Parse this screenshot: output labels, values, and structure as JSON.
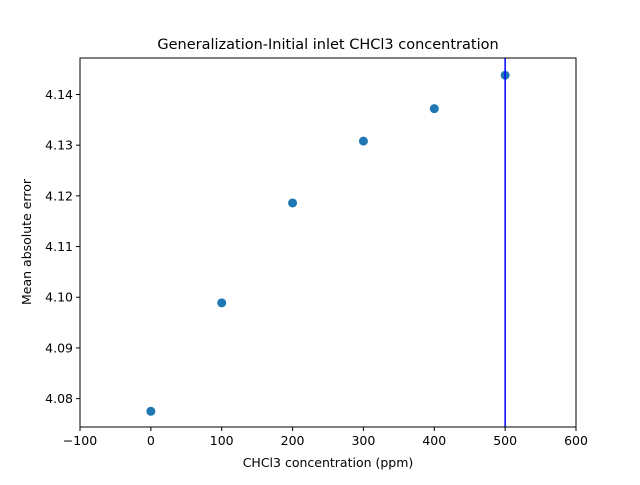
{
  "chart_data": {
    "type": "scatter",
    "title": "Generalization-Initial inlet CHCl3 concentration",
    "xlabel": "CHCl3 concentration (ppm)",
    "ylabel": "Mean absolute error",
    "xlim": [
      -100,
      600
    ],
    "ylim": [
      4.0744,
      4.1472
    ],
    "xticks": [
      -100,
      0,
      100,
      200,
      300,
      400,
      500,
      600
    ],
    "xtick_labels": [
      "−100",
      "0",
      "100",
      "200",
      "300",
      "400",
      "500",
      "600"
    ],
    "yticks": [
      4.08,
      4.09,
      4.1,
      4.11,
      4.12,
      4.13,
      4.14
    ],
    "ytick_labels": [
      "4.08",
      "4.09",
      "4.10",
      "4.11",
      "4.12",
      "4.13",
      "4.14"
    ],
    "grid": false,
    "series": [
      {
        "x": [
          0,
          100,
          200,
          300,
          400,
          500
        ],
        "y": [
          4.0775,
          4.0989,
          4.1186,
          4.1308,
          4.1372,
          4.1438
        ],
        "color": "#1f77b4"
      }
    ],
    "vline": {
      "x": 500,
      "color": "#0000ff"
    }
  }
}
